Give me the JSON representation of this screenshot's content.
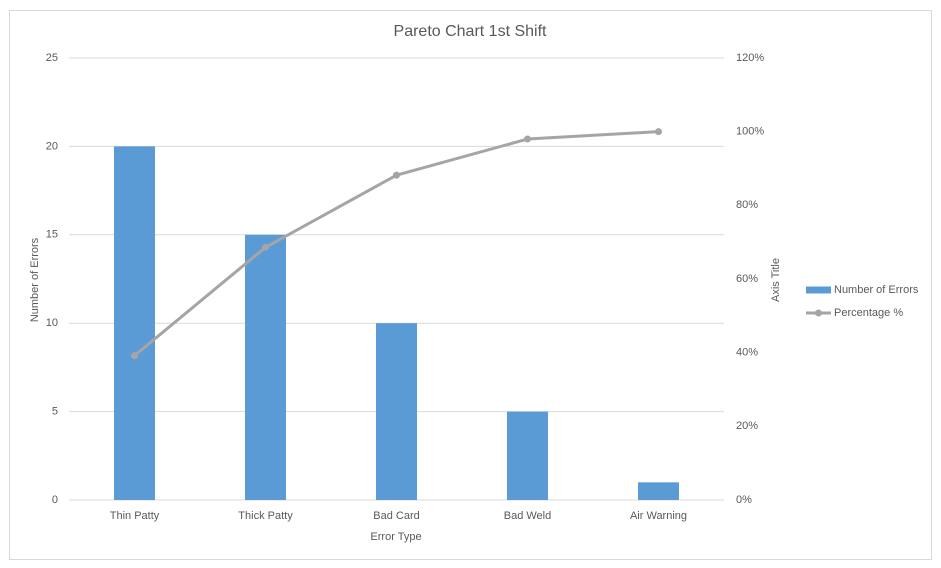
{
  "chart_data": {
    "type": "pareto",
    "title": "Pareto Chart 1st Shift",
    "x_label": "Error Type",
    "y_label": "Number of Errors",
    "y2_label": "Axis Title",
    "categories": [
      "Thin Patty",
      "Thick Patty",
      "Bad Card",
      "Bad Weld",
      "Air Warning"
    ],
    "series": [
      {
        "name": "Number of Errors",
        "type": "bar",
        "color": "#5b9bd5",
        "values": [
          20,
          15,
          10,
          5,
          1
        ]
      },
      {
        "name": "Percentage %",
        "type": "line",
        "axis": "y2",
        "color": "#a5a5a5",
        "values": [
          39.2,
          68.6,
          88.2,
          98.0,
          100
        ]
      }
    ],
    "ylim": [
      0,
      25
    ],
    "yticks": [
      0,
      5,
      10,
      15,
      20,
      25
    ],
    "y2lim": [
      0,
      120
    ],
    "y2ticks": [
      {
        "value": 0,
        "label": "0%"
      },
      {
        "value": 20,
        "label": "20%"
      },
      {
        "value": 40,
        "label": "40%"
      },
      {
        "value": 60,
        "label": "60%"
      },
      {
        "value": 80,
        "label": "80%"
      },
      {
        "value": 100,
        "label": "100%"
      },
      {
        "value": 120,
        "label": "120%"
      }
    ],
    "grid": true,
    "legend": "right"
  }
}
